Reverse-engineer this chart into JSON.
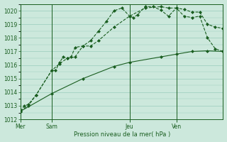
{
  "background_color": "#cce8dc",
  "grid_color": "#99ccbb",
  "line_color": "#1a5e20",
  "title": "Pression niveau de la mer( hPa )",
  "ylim": [
    1012,
    1020.5
  ],
  "yticks": [
    1012,
    1013,
    1014,
    1015,
    1016,
    1017,
    1018,
    1019,
    1020
  ],
  "day_labels": [
    "Mer",
    "Sam",
    "Jeu",
    "Ven"
  ],
  "day_positions": [
    0,
    4,
    14,
    20
  ],
  "vline_positions": [
    0,
    4,
    14,
    20
  ],
  "xlim": [
    0,
    26
  ],
  "series1_x": [
    0,
    0.5,
    1,
    2,
    4,
    4.5,
    5,
    5.5,
    6,
    6.5,
    7,
    8,
    9,
    10,
    11,
    12,
    13,
    14,
    14.5,
    15,
    16,
    17,
    18,
    19,
    20,
    21,
    22,
    23,
    24,
    25,
    26
  ],
  "series1_y": [
    1012.6,
    1013.0,
    1013.1,
    1013.8,
    1015.6,
    1015.6,
    1016.2,
    1016.6,
    1016.5,
    1016.6,
    1017.3,
    1017.4,
    1017.8,
    1018.5,
    1019.2,
    1020.0,
    1020.2,
    1019.6,
    1019.5,
    1019.7,
    1020.3,
    1020.3,
    1020.05,
    1019.6,
    1020.2,
    1020.1,
    1019.9,
    1019.9,
    1019.0,
    1018.8,
    1018.7
  ],
  "series2_x": [
    0,
    1,
    2,
    4,
    5,
    6,
    7,
    8,
    9,
    10,
    12,
    14,
    16,
    18,
    19,
    20,
    21,
    22,
    23,
    24,
    25,
    26
  ],
  "series2_y": [
    1012.6,
    1013.0,
    1013.8,
    1015.6,
    1016.1,
    1016.5,
    1016.6,
    1017.4,
    1017.4,
    1017.8,
    1018.8,
    1019.6,
    1020.2,
    1020.3,
    1020.2,
    1020.2,
    1019.6,
    1019.5,
    1019.6,
    1018.0,
    1017.2,
    1017.0
  ],
  "series3_x": [
    0,
    4,
    8,
    12,
    14,
    18,
    20,
    22,
    24,
    26
  ],
  "series3_y": [
    1012.6,
    1013.9,
    1015.0,
    1015.9,
    1016.2,
    1016.6,
    1016.8,
    1017.0,
    1017.05,
    1017.0
  ],
  "figsize": [
    3.2,
    2.0
  ],
  "dpi": 100
}
